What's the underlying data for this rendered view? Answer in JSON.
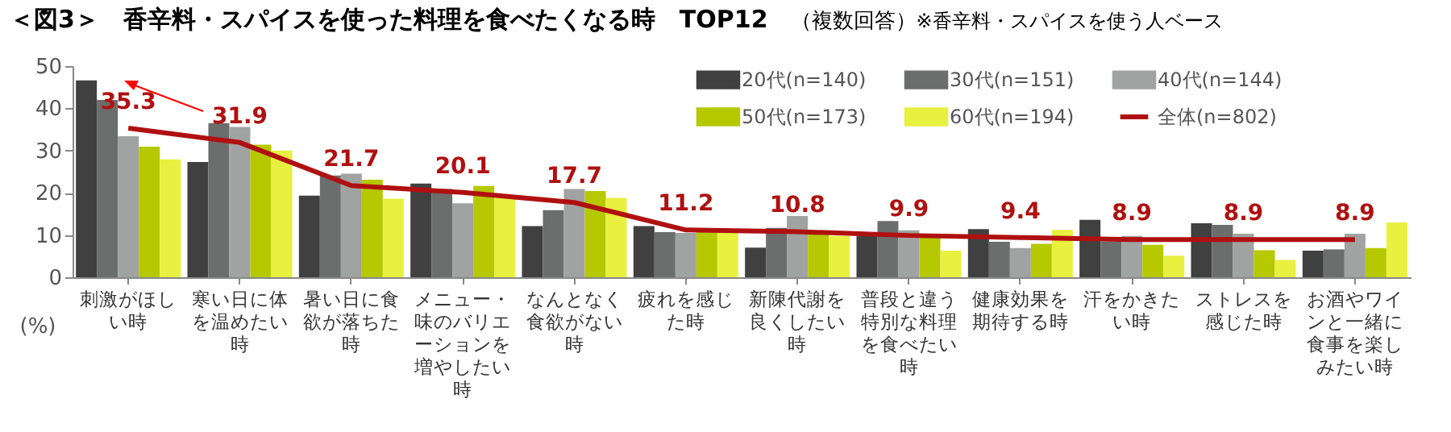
{
  "chart_data": {
    "type": "bar",
    "title": "＜図3＞　香辛料・スパイスを使った料理を食べたくなる時　TOP12",
    "subtitle": "（複数回答）",
    "annotations": [
      "※香辛料・スパイスを使う人ベース"
    ],
    "ylabel": "(%)",
    "ylim": [
      0,
      50
    ],
    "yticks": [
      0,
      10,
      20,
      30,
      40,
      50
    ],
    "legend": "top right",
    "categories": [
      "刺激がほしい時",
      "寒い日に体を温めたい時",
      "暑い日に食欲が落ちた時",
      "メニュー・味のバリエーションを増やしたい時",
      "なんとなく食欲がない時",
      "疲れを感じた時",
      "新陳代謝を良くしたい時",
      "普段と違う特別な料理を食べたい時",
      "健康効果を期待する時",
      "汗をかきたい時",
      "ストレスを感じた時",
      "お酒やワインと一緒に食事を楽しみたい時"
    ],
    "series": [
      {
        "name": "20代(n=140)",
        "color": "#404040",
        "values": [
          46.6,
          27.3,
          19.3,
          22.2,
          12.1,
          12.1,
          7.0,
          9.8,
          11.4,
          13.6,
          12.8,
          6.3
        ]
      },
      {
        "name": "30代(n=151)",
        "color": "#6b6e6c",
        "values": [
          42.0,
          36.5,
          24.1,
          20.9,
          15.9,
          10.7,
          11.7,
          13.3,
          8.4,
          8.5,
          12.4,
          6.6
        ]
      },
      {
        "name": "40代(n=144)",
        "color": "#a0a3a1",
        "values": [
          33.4,
          35.6,
          24.5,
          17.5,
          20.9,
          10.5,
          14.5,
          11.1,
          6.9,
          9.8,
          10.3,
          10.3
        ]
      },
      {
        "name": "50代(n=173)",
        "color": "#b5c800",
        "values": [
          30.9,
          31.4,
          23.1,
          21.6,
          20.4,
          10.7,
          10.5,
          9.4,
          7.9,
          7.7,
          6.4,
          6.9
        ]
      },
      {
        "name": "60代(n=194)",
        "color": "#e8f040",
        "values": [
          27.9,
          30.0,
          18.6,
          18.8,
          18.8,
          10.7,
          9.8,
          6.3,
          11.2,
          5.1,
          4.1,
          13.0
        ]
      },
      {
        "name": "全体(n=802)",
        "type": "line",
        "color": "#b01010",
        "values": [
          35.3,
          31.9,
          21.7,
          20.1,
          17.7,
          11.2,
          10.8,
          9.9,
          9.4,
          8.9,
          8.9,
          8.9
        ],
        "value_labels": [
          "35.3",
          "31.9",
          "21.7",
          "20.1",
          "17.7",
          "11.2",
          "10.8",
          "9.9",
          "9.4",
          "8.9",
          "8.9",
          "8.9"
        ]
      }
    ]
  }
}
